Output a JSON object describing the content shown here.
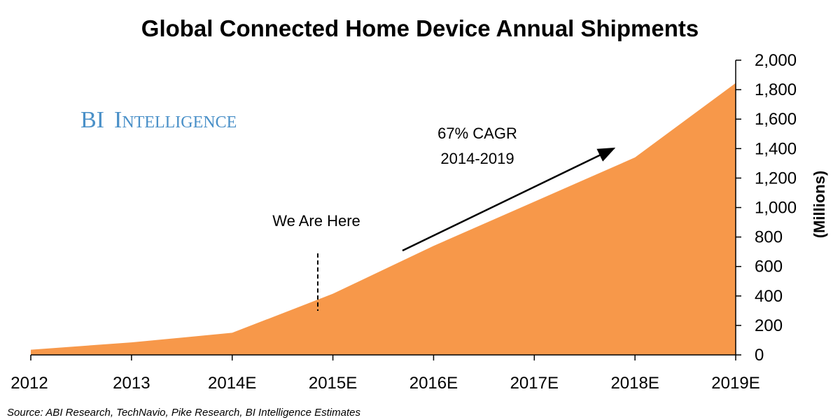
{
  "colors": {
    "area": "#f7984a",
    "axis": "#000000",
    "brand": "#4a90c8"
  },
  "chart_data": {
    "type": "area",
    "title": "Global Connected Home Device Annual Shipments",
    "categories": [
      "2012",
      "2013",
      "2014E",
      "2015E",
      "2016E",
      "2017E",
      "2018E",
      "2019E"
    ],
    "series": [
      {
        "name": "Shipments (Millions)",
        "values": [
          35,
          85,
          150,
          415,
          740,
          1040,
          1340,
          1845
        ]
      }
    ],
    "ylabel": "(Millions)",
    "xlabel": "",
    "ylim": [
      0,
      2000
    ],
    "yticks": [
      0,
      200,
      400,
      600,
      800,
      1000,
      1200,
      1400,
      1600,
      1800,
      2000
    ],
    "ytick_labels": [
      "0",
      "200",
      "400",
      "600",
      "800",
      "1,000",
      "1,200",
      "1,400",
      "1,600",
      "1,800",
      "2,000"
    ],
    "y_axis_position": "right",
    "grid": false,
    "annotations": {
      "we_are_here": "We Are Here",
      "cagr_line1": "67% CAGR",
      "cagr_line2": "2014-2019"
    },
    "marker_position": 2.85
  },
  "brand": {
    "part1": "BI",
    "part2": "Intelligence"
  },
  "source": "Source: ABI Research, TechNavio, Pike Research, BI Intelligence Estimates"
}
